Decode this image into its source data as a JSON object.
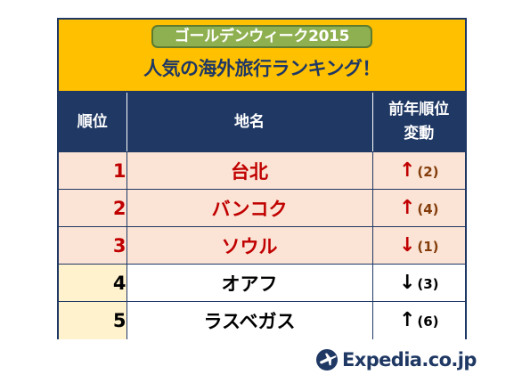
{
  "banner": {
    "pill_text": "ゴールデンウィーク2015",
    "headline": "人気の海外旅行ランキング！"
  },
  "table": {
    "headers": {
      "rank": "順位",
      "name": "地名",
      "change_line1": "前年順位",
      "change_line2": "変動"
    },
    "rows": [
      {
        "rank": "1",
        "name": "台北",
        "arrow": "↑",
        "prev": "(2)"
      },
      {
        "rank": "2",
        "name": "バンコク",
        "arrow": "↑",
        "prev": "(4)"
      },
      {
        "rank": "3",
        "name": "ソウル",
        "arrow": "↓",
        "prev": "(1)"
      },
      {
        "rank": "4",
        "name": "オアフ",
        "arrow": "↓",
        "prev": "(3)"
      },
      {
        "rank": "5",
        "name": "ラスベガス",
        "arrow": "↑",
        "prev": "(6)"
      }
    ]
  },
  "logo": {
    "text": "Expedia.co.jp",
    "icon": "expedia-globe-plane-icon"
  },
  "colors": {
    "navy": "#1f3864",
    "banner": "#ffc000",
    "pill": "#8fb050",
    "top_row_bg": "#fbe4d5",
    "top_text": "#c00000",
    "rest_row_bg": "#fff2cc"
  }
}
